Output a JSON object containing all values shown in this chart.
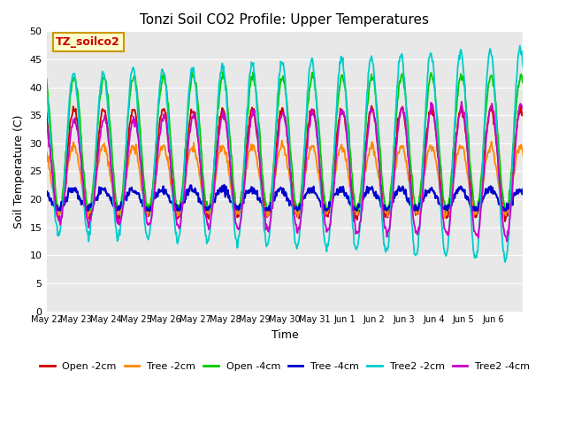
{
  "title": "Tonzi Soil CO2 Profile: Upper Temperatures",
  "xlabel": "Time",
  "ylabel": "Soil Temperature (C)",
  "ylim": [
    0,
    50
  ],
  "yticks": [
    0,
    5,
    10,
    15,
    20,
    25,
    30,
    35,
    40,
    45,
    50
  ],
  "bg_color": "#e8e8e8",
  "series": [
    {
      "label": "Open -2cm",
      "color": "#cc0000",
      "mean": 26.5,
      "amp": 9.5,
      "phase": 0.0,
      "trend_amp": 0.0,
      "min_clip": 16
    },
    {
      "label": "Tree -2cm",
      "color": "#ff8800",
      "mean": 23.5,
      "amp": 6.0,
      "phase": 0.05,
      "trend_amp": 0.0,
      "min_clip": 16
    },
    {
      "label": "Open -4cm",
      "color": "#00cc00",
      "mean": 30.0,
      "amp": 12.0,
      "phase": -0.05,
      "trend_amp": 0.0,
      "min_clip": 18
    },
    {
      "label": "Tree -4cm",
      "color": "#0000cc",
      "mean": 20.0,
      "amp": 1.8,
      "phase": 0.2,
      "trend_amp": 0.0,
      "min_clip": 18
    },
    {
      "label": "Tree2 -2cm",
      "color": "#00cccc",
      "mean": 28.0,
      "amp": 14.0,
      "phase": 0.1,
      "trend_amp": 5.0,
      "min_clip": 0
    },
    {
      "label": "Tree2 -4cm",
      "color": "#cc00cc",
      "mean": 25.0,
      "amp": 9.0,
      "phase": -0.1,
      "trend_amp": 3.0,
      "min_clip": 0
    }
  ],
  "xtick_labels": [
    "May 22",
    "May 23",
    "May 24",
    "May 25",
    "May 26",
    "May 27",
    "May 28",
    "May 29",
    "May 30",
    "May 31",
    "Jun 1",
    "Jun 2",
    "Jun 3",
    "Jun 4",
    "Jun 5",
    "Jun 6"
  ],
  "annotation_text": "TZ_soilco2",
  "annotation_color": "#cc0000",
  "annotation_bg": "#ffffcc",
  "annotation_border": "#cc9900",
  "n_days": 16,
  "n_per_day": 48
}
